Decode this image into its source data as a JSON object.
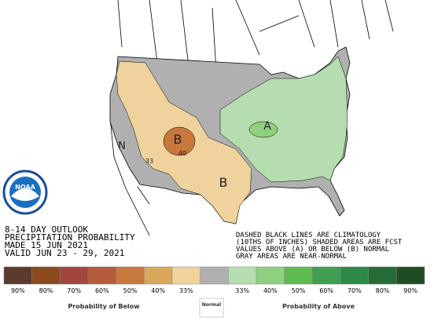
{
  "logo": "NOAA",
  "header": [
    "8-14 DAY OUTLOOK",
    "PRECIPITATION PROBABILITY",
    "MADE  15 JUN 2021",
    "VALID   JUN 23 - 29, 2021"
  ],
  "notes": [
    "DASHED BLACK LINES ARE CLIMATOLOGY",
    "(10THS OF INCHES) SHADED AREAS ARE FCST",
    "VALUES ABOVE (A) OR BELOW (B) NORMAL",
    "GRAY AREAS ARE NEAR-NORMAL"
  ],
  "map": {
    "labels": [
      {
        "text": "B",
        "size": 16
      },
      {
        "text": "B",
        "size": 16
      },
      {
        "text": "A",
        "size": 14
      },
      {
        "text": "N",
        "size": 13
      },
      {
        "text": "40",
        "size": 8
      },
      {
        "text": "33",
        "size": 8
      }
    ]
  },
  "legend": {
    "items": [
      {
        "label": "90%",
        "color": "#5b3b2e"
      },
      {
        "label": "80%",
        "color": "#8a4a1e"
      },
      {
        "label": "70%",
        "color": "#a0463a"
      },
      {
        "label": "60%",
        "color": "#b35b3a"
      },
      {
        "label": "50%",
        "color": "#c8773d"
      },
      {
        "label": "40%",
        "color": "#d9a85a"
      },
      {
        "label": "33%",
        "color": "#efd29c"
      },
      {
        "label": null,
        "color": "#b0b0b0"
      },
      {
        "label": "33%",
        "color": "#b5ddb0"
      },
      {
        "label": "40%",
        "color": "#90cf80"
      },
      {
        "label": "50%",
        "color": "#5fbb4e"
      },
      {
        "label": "60%",
        "color": "#3f9f4e"
      },
      {
        "label": "70%",
        "color": "#2d8a47"
      },
      {
        "label": "80%",
        "color": "#256b36"
      },
      {
        "label": "90%",
        "color": "#1f4d22"
      }
    ],
    "below_caption": "Probability of Below",
    "normal_caption": "Normal",
    "above_caption": "Probability of Above"
  }
}
